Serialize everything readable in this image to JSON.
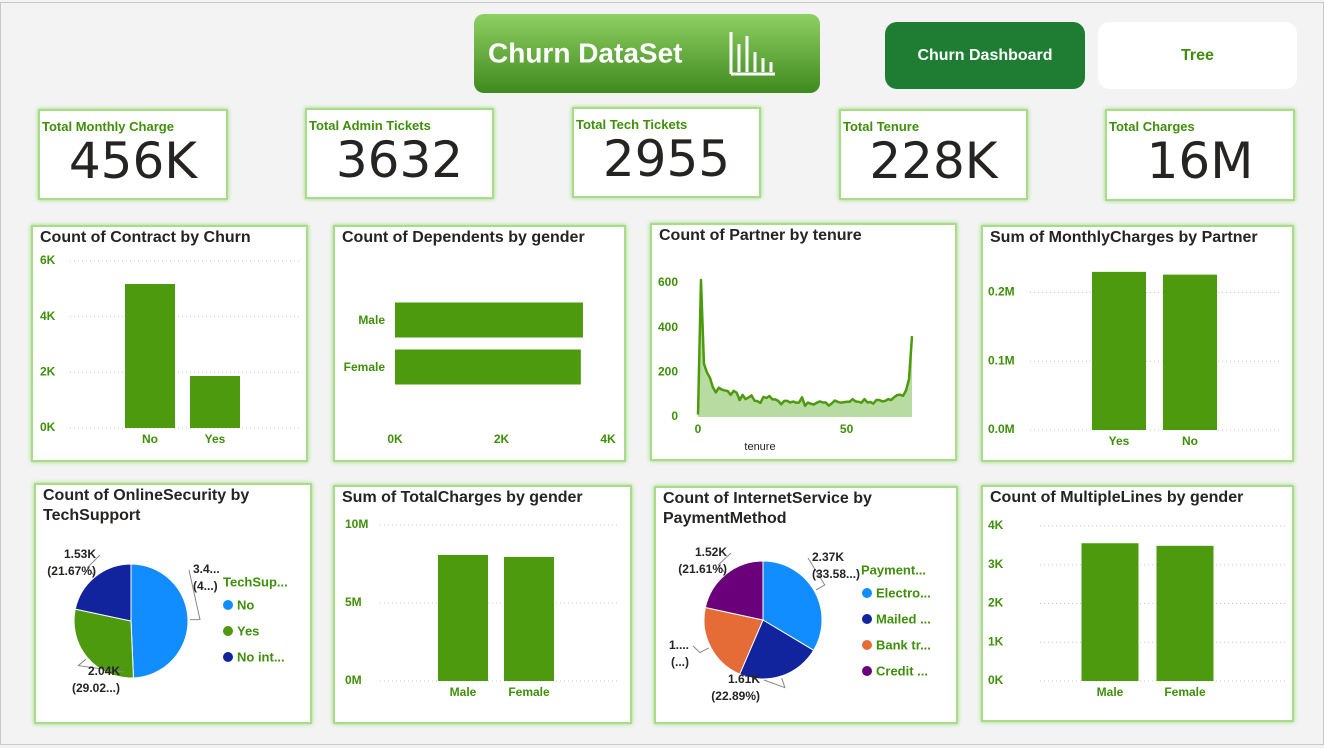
{
  "header": {
    "title": "Churn DataSet"
  },
  "buttons": [
    "Churn Dashboard",
    "Tree"
  ],
  "kpis": [
    {
      "label": "Total Monthly Charge",
      "value": "456K"
    },
    {
      "label": "Total Admin Tickets",
      "value": "3632"
    },
    {
      "label": "Total Tech Tickets",
      "value": "2955"
    },
    {
      "label": "Total Tenure",
      "value": "228K"
    },
    {
      "label": "Total Charges",
      "value": "16M"
    }
  ],
  "chart_data": [
    {
      "type": "bar",
      "title": "Count of Contract by Churn",
      "categories": [
        "No",
        "Yes"
      ],
      "values": [
        5174,
        1869
      ],
      "color": "#4e9a0e",
      "ylim": [
        0,
        6000
      ],
      "yticks": [
        {
          "value": 0,
          "label": "0K"
        },
        {
          "value": 2000,
          "label": "2K"
        },
        {
          "value": 4000,
          "label": "4K"
        },
        {
          "value": 6000,
          "label": "6K"
        }
      ],
      "grid": true
    },
    {
      "type": "hbar",
      "title": "Count of Dependents by gender",
      "categories": [
        "Male",
        "Female"
      ],
      "values": [
        3530,
        3490
      ],
      "color": "#4e9a0e",
      "xlim": [
        0,
        4000
      ],
      "xticks": [
        {
          "value": 0,
          "label": "0K"
        },
        {
          "value": 2000,
          "label": "2K"
        },
        {
          "value": 4000,
          "label": "4K"
        }
      ],
      "grid": false
    },
    {
      "type": "line",
      "title": "Count of Partner by tenure",
      "xlabel": "tenure",
      "color": "#4e9a0e",
      "fill_color": "#b7dba0",
      "x": [
        0,
        1,
        2,
        3,
        4,
        5,
        6,
        7,
        8,
        9,
        10,
        11,
        12,
        13,
        14,
        15,
        16,
        17,
        18,
        19,
        20,
        21,
        22,
        23,
        24,
        25,
        26,
        27,
        28,
        29,
        30,
        31,
        32,
        33,
        34,
        35,
        36,
        37,
        38,
        39,
        40,
        41,
        42,
        43,
        44,
        45,
        46,
        47,
        48,
        49,
        50,
        51,
        52,
        53,
        54,
        55,
        56,
        57,
        58,
        59,
        60,
        61,
        62,
        63,
        64,
        65,
        66,
        67,
        68,
        69,
        70,
        71,
        72
      ],
      "values": [
        11,
        613,
        238,
        200,
        176,
        133,
        110,
        131,
        123,
        119,
        116,
        99,
        117,
        109,
        76,
        99,
        80,
        87,
        97,
        73,
        71,
        63,
        90,
        85,
        94,
        79,
        79,
        72,
        57,
        72,
        72,
        65,
        69,
        64,
        65,
        88,
        50,
        65,
        59,
        56,
        64,
        70,
        65,
        65,
        51,
        61,
        74,
        68,
        64,
        66,
        68,
        68,
        80,
        70,
        68,
        64,
        80,
        65,
        67,
        60,
        76,
        76,
        70,
        72,
        80,
        76,
        89,
        98,
        100,
        95,
        119,
        170,
        362
      ],
      "xlim": [
        0,
        72
      ],
      "xticks": [
        0,
        50
      ],
      "ylim": [
        0,
        640
      ],
      "yticks": [
        0,
        200,
        400,
        600
      ],
      "grid": false
    },
    {
      "type": "bar",
      "title": "Sum of MonthlyCharges by Partner",
      "categories": [
        "Yes",
        "No"
      ],
      "values": [
        230000,
        226000
      ],
      "color": "#4e9a0e",
      "ylim": [
        0,
        240000
      ],
      "yticks": [
        {
          "value": 0,
          "label": "0.0M"
        },
        {
          "value": 100000,
          "label": "0.1M"
        },
        {
          "value": 200000,
          "label": "0.2M"
        }
      ],
      "grid": true
    },
    {
      "type": "pie",
      "title": "Count of OnlineSecurity by TechSupport",
      "legend_title": "TechSup...",
      "categories": [
        "No",
        "Yes",
        "No int..."
      ],
      "values": [
        3473,
        2044,
        1526
      ],
      "colors": [
        "#118dff",
        "#4e9a0e",
        "#12239e"
      ],
      "value_labels": [
        [
          "3.4...",
          "(4...)"
        ],
        [
          "2.04K",
          "(29.02...)"
        ],
        [
          "1.53K",
          "(21.67%)"
        ]
      ],
      "legend": "right"
    },
    {
      "type": "bar",
      "title": "Sum of TotalCharges by gender",
      "categories": [
        "Male",
        "Female"
      ],
      "values": [
        8080000,
        7950000
      ],
      "color": "#4e9a0e",
      "ylim": [
        0,
        10000000
      ],
      "yticks": [
        {
          "value": 0,
          "label": "0M"
        },
        {
          "value": 5000000,
          "label": "5M"
        },
        {
          "value": 10000000,
          "label": "10M"
        }
      ],
      "grid": true
    },
    {
      "type": "pie",
      "title": "Count of InternetService by PaymentMethod",
      "legend_title": "Payment...",
      "categories": [
        "Electro...",
        "Mailed ...",
        "Bank tr...",
        "Credit ..."
      ],
      "values": [
        2365,
        1612,
        1544,
        1522
      ],
      "colors": [
        "#118dff",
        "#12239e",
        "#e66c37",
        "#6b007b"
      ],
      "value_labels": [
        [
          "2.37K",
          "(33.58...)"
        ],
        [
          "1.61K",
          "(22.89%)"
        ],
        [
          "1....",
          "(...)"
        ],
        [
          "1.52K",
          "(21.61%)"
        ]
      ],
      "legend": "right"
    },
    {
      "type": "bar",
      "title": "Count of MultipleLines by gender",
      "categories": [
        "Male",
        "Female"
      ],
      "values": [
        3555,
        3488
      ],
      "color": "#4e9a0e",
      "ylim": [
        0,
        4000
      ],
      "yticks": [
        {
          "value": 0,
          "label": "0K"
        },
        {
          "value": 1000,
          "label": "1K"
        },
        {
          "value": 2000,
          "label": "2K"
        },
        {
          "value": 3000,
          "label": "3K"
        },
        {
          "value": 4000,
          "label": "4K"
        }
      ],
      "grid": true
    }
  ]
}
